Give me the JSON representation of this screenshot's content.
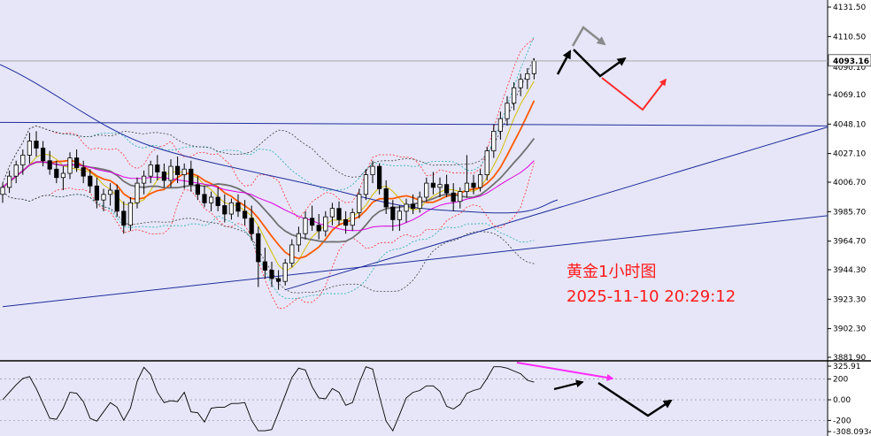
{
  "chart_data": [
    {
      "type": "candlestick",
      "title": "黄金1小时图",
      "subtitle": "2025-11-10 20:29:12",
      "y_axis_ticks": [
        "4131.50",
        "4110.50",
        "4069.10",
        "4048.10",
        "4027.10",
        "4006.70",
        "3985.70",
        "3964.70",
        "3944.30",
        "3923.30",
        "3902.30",
        "3881.90"
      ],
      "ylim": [
        3881.9,
        4131.5
      ],
      "current_price": "4093.16",
      "price_axis_hidden_label": "4090.10",
      "horizontal_line": 4048.1,
      "candles_ohlc": [
        [
          3998,
          4006,
          3992,
          4003
        ],
        [
          4003,
          4015,
          3999,
          4011
        ],
        [
          4011,
          4022,
          4006,
          4019
        ],
        [
          4019,
          4030,
          4012,
          4026
        ],
        [
          4026,
          4042,
          4020,
          4036
        ],
        [
          4036,
          4043,
          4025,
          4031
        ],
        [
          4031,
          4036,
          4018,
          4022
        ],
        [
          4022,
          4029,
          4012,
          4016
        ],
        [
          4016,
          4022,
          4006,
          4010
        ],
        [
          4010,
          4018,
          4001,
          4013
        ],
        [
          4013,
          4028,
          4009,
          4024
        ],
        [
          4024,
          4030,
          4014,
          4017
        ],
        [
          4017,
          4022,
          4006,
          4011
        ],
        [
          4011,
          4016,
          3999,
          4004
        ],
        [
          4004,
          4010,
          3988,
          3994
        ],
        [
          3994,
          4002,
          3986,
          3998
        ],
        [
          3998,
          4006,
          3990,
          4001
        ],
        [
          4001,
          4005,
          3982,
          3986
        ],
        [
          3986,
          3993,
          3970,
          3976
        ],
        [
          3976,
          3996,
          3972,
          3992
        ],
        [
          3992,
          4010,
          3988,
          4006
        ],
        [
          4006,
          4015,
          3998,
          4011
        ],
        [
          4011,
          4022,
          4006,
          4019
        ],
        [
          4019,
          4026,
          4008,
          4014
        ],
        [
          4014,
          4020,
          4003,
          4008
        ],
        [
          4008,
          4023,
          4003,
          4018
        ],
        [
          4018,
          4025,
          4006,
          4012
        ],
        [
          4012,
          4020,
          4002,
          4016
        ],
        [
          4016,
          4022,
          4000,
          4005
        ],
        [
          4005,
          4011,
          3994,
          3998
        ],
        [
          3998,
          4004,
          3989,
          3992
        ],
        [
          3992,
          4000,
          3986,
          3996
        ],
        [
          3996,
          4003,
          3986,
          3990
        ],
        [
          3990,
          3998,
          3978,
          3984
        ],
        [
          3984,
          3995,
          3980,
          3992
        ],
        [
          3992,
          3998,
          3982,
          3986
        ],
        [
          3986,
          3994,
          3976,
          3981
        ],
        [
          3981,
          3990,
          3965,
          3970
        ],
        [
          3970,
          3975,
          3932,
          3950
        ],
        [
          3950,
          3960,
          3938,
          3944
        ],
        [
          3944,
          3950,
          3932,
          3938
        ],
        [
          3938,
          3944,
          3930,
          3936
        ],
        [
          3936,
          3952,
          3933,
          3949
        ],
        [
          3949,
          3966,
          3946,
          3962
        ],
        [
          3962,
          3975,
          3957,
          3970
        ],
        [
          3970,
          3986,
          3966,
          3981
        ],
        [
          3981,
          3990,
          3972,
          3976
        ],
        [
          3976,
          3984,
          3966,
          3972
        ],
        [
          3972,
          3986,
          3968,
          3982
        ],
        [
          3982,
          3992,
          3976,
          3988
        ],
        [
          3988,
          3993,
          3976,
          3980
        ],
        [
          3980,
          3986,
          3970,
          3976
        ],
        [
          3976,
          3988,
          3972,
          3985
        ],
        [
          3985,
          4002,
          3981,
          3998
        ],
        [
          3998,
          4016,
          3994,
          4012
        ],
        [
          4012,
          4022,
          4006,
          4018
        ],
        [
          4018,
          4020,
          3998,
          4002
        ],
        [
          4002,
          4008,
          3984,
          3989
        ],
        [
          3989,
          3994,
          3972,
          3980
        ],
        [
          3980,
          3990,
          3972,
          3986
        ],
        [
          3986,
          3995,
          3978,
          3991
        ],
        [
          3991,
          3998,
          3984,
          3988
        ],
        [
          3988,
          4000,
          3985,
          3996
        ],
        [
          3996,
          4010,
          3993,
          4006
        ],
        [
          4006,
          4014,
          3998,
          4003
        ],
        [
          4003,
          4010,
          3996,
          4005
        ],
        [
          4005,
          4012,
          3996,
          3999
        ],
        [
          3999,
          4006,
          3986,
          3993
        ],
        [
          3993,
          4003,
          3988,
          4000
        ],
        [
          4000,
          4026,
          3996,
          4006
        ],
        [
          4006,
          4012,
          3998,
          4003
        ],
        [
          4003,
          4016,
          4000,
          4012
        ],
        [
          4012,
          4032,
          4008,
          4029
        ],
        [
          4029,
          4048,
          4024,
          4043
        ],
        [
          4043,
          4057,
          4037,
          4052
        ],
        [
          4052,
          4068,
          4047,
          4063
        ],
        [
          4063,
          4078,
          4058,
          4074
        ],
        [
          4074,
          4084,
          4068,
          4080
        ],
        [
          4080,
          4088,
          4073,
          4084
        ],
        [
          4084,
          4095,
          4080,
          4093
        ]
      ],
      "moving_averages": [
        {
          "color": "#ff5a00",
          "label": "MA (orange)"
        },
        {
          "color": "#707070",
          "label": "MA (gray)"
        },
        {
          "color": "#e000e0",
          "label": "MA (magenta)"
        },
        {
          "color": "#1f2d9c",
          "label": "MA (navy)"
        }
      ],
      "trendlines": [
        {
          "from": [
            0,
            3918
          ],
          "to": [
            140,
            3992
          ]
        },
        {
          "from": [
            42,
            3930
          ],
          "to": [
            124,
            4048
          ]
        }
      ]
    },
    {
      "type": "line",
      "name": "oscillator",
      "y_axis_ticks": [
        "325.91",
        "200",
        "0.00",
        "-200",
        "-308.0934"
      ],
      "ylim": [
        -308.0934,
        325.91
      ]
    }
  ],
  "colors": {
    "background": "#e6e6f8",
    "candle": "#000000",
    "axis_bg": "#ffffff",
    "annotation_text": "#ff1a1a",
    "arrow_black": "#000000",
    "arrow_gray": "#8a8a8a",
    "arrow_red": "#ff2a2a",
    "arrow_magenta": "#ff2aff"
  }
}
